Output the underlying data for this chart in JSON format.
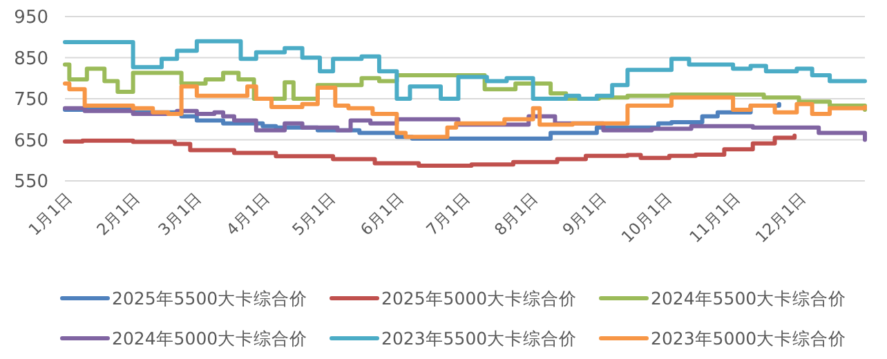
{
  "chart_data": {
    "type": "step",
    "ylim": [
      550,
      950
    ],
    "yticks": [
      550,
      650,
      750,
      850,
      950
    ],
    "grid": "y",
    "legend": "bottom",
    "line_style": "solid",
    "marker": "none",
    "xlim": [
      "--01-01",
      "--12-31"
    ],
    "xticks": [
      {
        "value": "--01-01",
        "label": "1月1日"
      },
      {
        "value": "--02-01",
        "label": "2月1日"
      },
      {
        "value": "--03-01",
        "label": "3月1日"
      },
      {
        "value": "--04-01",
        "label": "4月1日"
      },
      {
        "value": "--05-01",
        "label": "5月1日"
      },
      {
        "value": "--06-01",
        "label": "6月1日"
      },
      {
        "value": "--07-01",
        "label": "7月1日"
      },
      {
        "value": "--08-01",
        "label": "8月1日"
      },
      {
        "value": "--09-01",
        "label": "9月1日"
      },
      {
        "value": "--10-01",
        "label": "10月1日"
      },
      {
        "value": "--11-01",
        "label": "11月1日"
      },
      {
        "value": "--12-01",
        "label": "12月1日"
      }
    ],
    "series": [
      {
        "name": "2025年5500大卡综合价",
        "color": "#4f81bd",
        "x": [
          "--01-01",
          "--02-01",
          "--02-23",
          "--03-02",
          "--03-14",
          "--04-01",
          "--04-07",
          "--04-26",
          "--05-15",
          "--06-01",
          "--06-08",
          "--07-17",
          "--08-10",
          "--08-31",
          "--09-28",
          "--10-04",
          "--10-18",
          "--10-25",
          "--11-09",
          "--11-22"
        ],
        "values": [
          723,
          717,
          707,
          697,
          690,
          683,
          680,
          673,
          667,
          657,
          653,
          653,
          667,
          680,
          690,
          693,
          707,
          717,
          733,
          737
        ]
      },
      {
        "name": "2025年5000大卡综合价",
        "color": "#c0504d",
        "x": [
          "--01-01",
          "--01-09",
          "--02-01",
          "--02-20",
          "--02-27",
          "--03-19",
          "--04-07",
          "--05-03",
          "--05-22",
          "--06-11",
          "--07-05",
          "--07-24",
          "--08-13",
          "--08-26",
          "--09-14",
          "--09-20",
          "--10-03",
          "--10-15",
          "--10-28",
          "--11-10",
          "--11-20",
          "--11-29"
        ],
        "values": [
          646,
          648,
          645,
          640,
          625,
          618,
          610,
          603,
          593,
          587,
          590,
          596,
          603,
          611,
          613,
          606,
          611,
          614,
          627,
          641,
          655,
          660
        ]
      },
      {
        "name": "2024年5500大卡综合价",
        "color": "#9bbb59",
        "x": [
          "--01-01",
          "--01-03",
          "--01-11",
          "--01-19",
          "--01-25",
          "--02-01",
          "--02-23",
          "--03-06",
          "--03-14",
          "--03-21",
          "--03-28",
          "--04-11",
          "--04-15",
          "--04-26",
          "--05-16",
          "--05-24",
          "--06-01",
          "--07-11",
          "--07-25",
          "--08-10",
          "--08-17",
          "--09-01",
          "--09-14",
          "--10-04",
          "--10-31",
          "--11-15",
          "--12-01",
          "--12-15",
          "--12-31"
        ],
        "values": [
          833,
          797,
          823,
          793,
          767,
          813,
          787,
          797,
          813,
          797,
          750,
          790,
          750,
          783,
          800,
          793,
          807,
          773,
          787,
          763,
          750,
          753,
          757,
          760,
          760,
          753,
          743,
          733,
          723
        ]
      },
      {
        "name": "2024年5000大卡综合价",
        "color": "#8064a2",
        "x": [
          "--01-01",
          "--01-10",
          "--02-01",
          "--02-21",
          "--03-02",
          "--03-10",
          "--03-14",
          "--03-19",
          "--03-29",
          "--04-11",
          "--04-19",
          "--05-05",
          "--05-11",
          "--05-20",
          "--06-01",
          "--06-29",
          "--07-31",
          "--08-12",
          "--09-03",
          "--09-25",
          "--10-13",
          "--11-10",
          "--12-10",
          "--12-31"
        ],
        "values": [
          727,
          720,
          713,
          720,
          713,
          717,
          707,
          697,
          673,
          690,
          680,
          673,
          697,
          690,
          700,
          687,
          707,
          690,
          673,
          677,
          683,
          680,
          667,
          650
        ]
      },
      {
        "name": "2023年5500大卡综合价",
        "color": "#4bacc6",
        "x": [
          "--01-01",
          "--02-01",
          "--02-14",
          "--02-21",
          "--03-02",
          "--03-22",
          "--03-29",
          "--04-11",
          "--04-19",
          "--04-27",
          "--05-03",
          "--05-16",
          "--05-24",
          "--06-01",
          "--06-07",
          "--06-21",
          "--06-29",
          "--07-12",
          "--07-21",
          "--08-02",
          "--08-17",
          "--08-23",
          "--08-31",
          "--09-07",
          "--09-14",
          "--10-04",
          "--10-12",
          "--11-01",
          "--11-09",
          "--11-16",
          "--11-30",
          "--12-07",
          "--12-15",
          "--12-31"
        ],
        "values": [
          888,
          827,
          847,
          867,
          890,
          847,
          863,
          873,
          850,
          817,
          847,
          853,
          817,
          750,
          780,
          750,
          803,
          793,
          800,
          750,
          757,
          750,
          757,
          783,
          820,
          847,
          833,
          823,
          830,
          817,
          823,
          807,
          793,
          793
        ]
      },
      {
        "name": "2023年5000大卡综合价",
        "color": "#f79646",
        "x": [
          "--01-01",
          "--01-03",
          "--01-10",
          "--02-01",
          "--02-10",
          "--02-17",
          "--02-23",
          "--03-02",
          "--03-25",
          "--03-29",
          "--04-05",
          "--04-19",
          "--04-26",
          "--05-04",
          "--05-10",
          "--05-21",
          "--06-01",
          "--06-05",
          "--06-24",
          "--06-28",
          "--07-20",
          "--08-02",
          "--08-05",
          "--08-20",
          "--09-14",
          "--10-04",
          "--11-01",
          "--11-09",
          "--11-20",
          "--11-30",
          "--12-07",
          "--12-15",
          "--12-31"
        ],
        "values": [
          787,
          773,
          733,
          727,
          717,
          713,
          780,
          757,
          780,
          750,
          730,
          737,
          777,
          733,
          727,
          713,
          667,
          657,
          680,
          690,
          700,
          727,
          687,
          690,
          733,
          753,
          723,
          733,
          717,
          737,
          713,
          727,
          730
        ]
      }
    ]
  }
}
